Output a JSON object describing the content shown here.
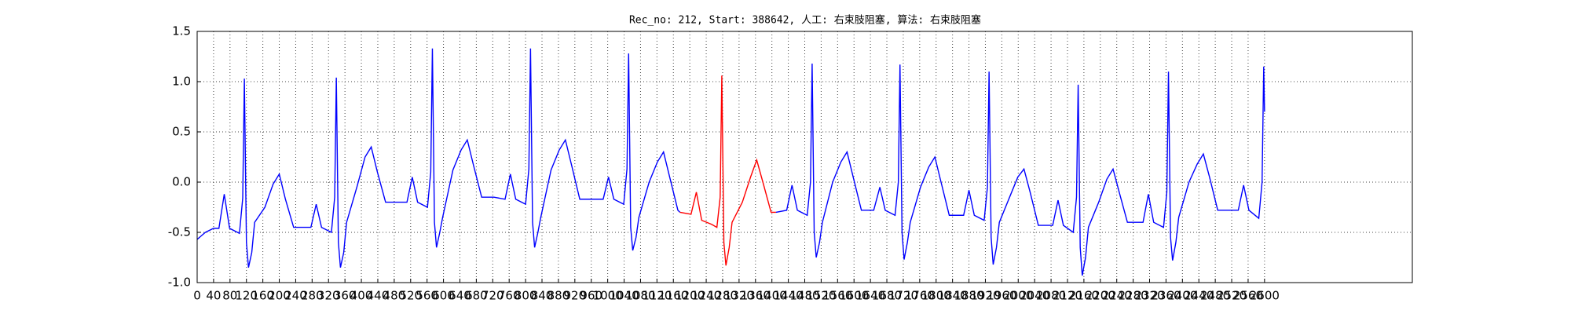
{
  "chart_data": {
    "type": "line",
    "title": "Rec_no: 212, Start: 388642, 人工: 右束肢阻塞, 算法: 右束肢阻塞",
    "xlim": [
      0,
      2960
    ],
    "ylim": [
      -1.0,
      1.5
    ],
    "xticks": [
      0,
      40,
      80,
      120,
      160,
      200,
      240,
      280,
      320,
      360,
      400,
      440,
      480,
      520,
      560,
      600,
      640,
      680,
      720,
      760,
      800,
      840,
      880,
      920,
      960,
      1000,
      1040,
      1080,
      1120,
      1160,
      1200,
      1240,
      1280,
      1320,
      1360,
      1400,
      1440,
      1480,
      1520,
      1560,
      1600,
      1640,
      1680,
      1720,
      1760,
      1800,
      1840,
      1880,
      1920,
      1960,
      2000,
      2040,
      2080,
      2120,
      2160,
      2200,
      2240,
      2280,
      2320,
      2360,
      2400,
      2440,
      2480,
      2520,
      2560,
      2600
    ],
    "yticks": [
      {
        "value": -1.0,
        "label": "-1.0"
      },
      {
        "value": -0.5,
        "label": "-0.5"
      },
      {
        "value": 0.0,
        "label": "0.0"
      },
      {
        "value": 0.5,
        "label": "0.5"
      },
      {
        "value": 1.0,
        "label": "1.0"
      },
      {
        "value": 1.5,
        "label": "1.5"
      }
    ],
    "grid": true,
    "series": [
      {
        "color": "#0000ff",
        "x": [
          0,
          20,
          40,
          53,
          66,
          79,
          103,
          111,
          115,
          120,
          125,
          133,
          140,
          165,
          185,
          200,
          215,
          235,
          265,
          277,
          290,
          303,
          327,
          335,
          339,
          344,
          349,
          357,
          364,
          389,
          409,
          424,
          439,
          459,
          489,
          511,
          524,
          537,
          561,
          569,
          573,
          578,
          583,
          591,
          598,
          623,
          643,
          658,
          673,
          693,
          723,
          750,
          763,
          776,
          800,
          808,
          812,
          817,
          822,
          830,
          837,
          862,
          882,
          897,
          912,
          932,
          962,
          989,
          1002,
          1015,
          1039,
          1047,
          1051,
          1056,
          1061,
          1069,
          1076,
          1101,
          1121,
          1136,
          1151,
          1171,
          1176
        ],
        "values": [
          -0.57,
          -0.5,
          -0.46,
          -0.46,
          -0.12,
          -0.46,
          -0.51,
          -0.16,
          1.03,
          -0.6,
          -0.85,
          -0.7,
          -0.4,
          -0.25,
          -0.02,
          0.08,
          -0.17,
          -0.45,
          -0.45,
          -0.45,
          -0.22,
          -0.45,
          -0.5,
          -0.15,
          1.04,
          -0.6,
          -0.85,
          -0.7,
          -0.4,
          -0.05,
          0.25,
          0.35,
          0.1,
          -0.2,
          -0.2,
          -0.2,
          0.05,
          -0.2,
          -0.25,
          0.1,
          1.33,
          -0.4,
          -0.65,
          -0.5,
          -0.35,
          0.12,
          0.32,
          0.42,
          0.17,
          -0.15,
          -0.15,
          -0.17,
          0.08,
          -0.17,
          -0.22,
          0.13,
          1.33,
          -0.4,
          -0.65,
          -0.5,
          -0.35,
          0.12,
          0.32,
          0.42,
          0.17,
          -0.17,
          -0.17,
          -0.17,
          0.05,
          -0.17,
          -0.22,
          0.13,
          1.28,
          -0.45,
          -0.68,
          -0.55,
          -0.35,
          0.0,
          0.2,
          0.3,
          0.05,
          -0.28,
          -0.3
        ]
      },
      {
        "color": "#ff0000",
        "x": [
          1176,
          1203,
          1216,
          1229,
          1253,
          1266,
          1274,
          1278,
          1283,
          1288,
          1296,
          1303,
          1328,
          1348,
          1363,
          1378,
          1398,
          1410
        ],
        "values": [
          -0.3,
          -0.32,
          -0.1,
          -0.38,
          -0.42,
          -0.45,
          -0.15,
          1.06,
          -0.6,
          -0.83,
          -0.65,
          -0.4,
          -0.2,
          0.05,
          0.22,
          0.0,
          -0.3,
          -0.3
        ]
      },
      {
        "color": "#0000ff",
        "x": [
          1410,
          1436,
          1449,
          1462,
          1486,
          1494,
          1498,
          1503,
          1508,
          1516,
          1523,
          1548,
          1568,
          1583,
          1598,
          1618,
          1648,
          1663,
          1676,
          1700,
          1708,
          1712,
          1717,
          1722,
          1730,
          1737,
          1762,
          1782,
          1797,
          1812,
          1832,
          1862,
          1867,
          1880,
          1893,
          1917,
          1925,
          1929,
          1934,
          1939,
          1947,
          1954,
          1979,
          1999,
          2014,
          2029,
          2049,
          2079,
          2084,
          2097,
          2110,
          2134,
          2142,
          2146,
          2151,
          2156,
          2164,
          2171,
          2196,
          2216,
          2231,
          2246,
          2266,
          2296,
          2304,
          2317,
          2330,
          2354,
          2362,
          2366,
          2371,
          2376,
          2384,
          2391,
          2416,
          2436,
          2451,
          2466,
          2486,
          2516,
          2536,
          2549,
          2562,
          2586,
          2594,
          2598,
          2600
        ],
        "values": [
          -0.3,
          -0.28,
          -0.03,
          -0.28,
          -0.33,
          0.0,
          1.18,
          -0.5,
          -0.75,
          -0.6,
          -0.4,
          0.0,
          0.2,
          0.3,
          0.05,
          -0.28,
          -0.28,
          -0.05,
          -0.28,
          -0.33,
          0.0,
          1.17,
          -0.5,
          -0.77,
          -0.6,
          -0.4,
          -0.05,
          0.15,
          0.25,
          0.0,
          -0.33,
          -0.33,
          -0.33,
          -0.08,
          -0.33,
          -0.38,
          -0.05,
          1.1,
          -0.55,
          -0.82,
          -0.65,
          -0.4,
          -0.15,
          0.05,
          0.13,
          -0.1,
          -0.43,
          -0.43,
          -0.43,
          -0.18,
          -0.43,
          -0.5,
          -0.15,
          0.97,
          -0.65,
          -0.93,
          -0.75,
          -0.45,
          -0.2,
          0.03,
          0.13,
          -0.1,
          -0.4,
          -0.4,
          -0.4,
          -0.12,
          -0.4,
          -0.45,
          -0.1,
          1.1,
          -0.55,
          -0.78,
          -0.6,
          -0.35,
          0.0,
          0.18,
          0.28,
          0.05,
          -0.28,
          -0.28,
          -0.28,
          -0.03,
          -0.28,
          -0.36,
          0.0,
          1.15,
          0.7
        ]
      }
    ]
  }
}
